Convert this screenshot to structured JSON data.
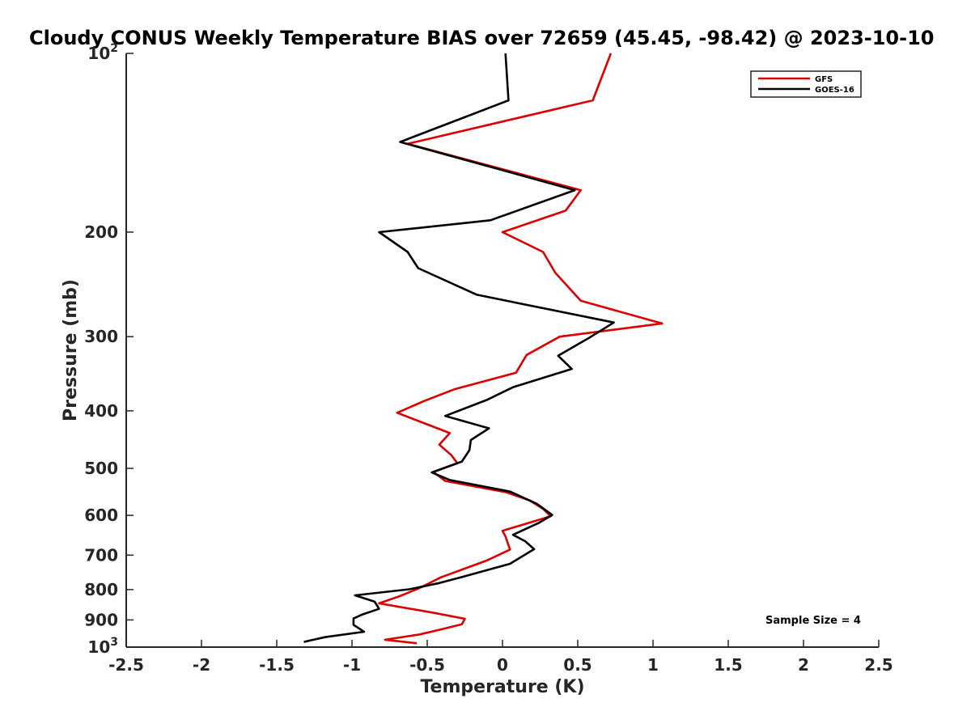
{
  "chart_data": {
    "type": "line",
    "title": "Cloudy CONUS Weekly Temperature BIAS over 72659 (45.45, -98.42) @ 2023-10-10",
    "xlabel": "Temperature (K)",
    "ylabel": "Pressure (mb)",
    "xlim": [
      -2.5,
      2.5
    ],
    "ylim": [
      100,
      1000
    ],
    "y_scale": "log",
    "y_reversed": true,
    "grid": false,
    "legend_position": "top-right",
    "x_ticks": [
      "-2.5",
      "-2",
      "-1.5",
      "-1",
      "-0.5",
      "0",
      "0.5",
      "1",
      "1.5",
      "2",
      "2.5"
    ],
    "y_ticks": [
      {
        "value": 100,
        "label": "10",
        "sup": "2"
      },
      {
        "value": 200,
        "label": "200",
        "sup": ""
      },
      {
        "value": 300,
        "label": "300",
        "sup": ""
      },
      {
        "value": 400,
        "label": "400",
        "sup": ""
      },
      {
        "value": 500,
        "label": "500",
        "sup": ""
      },
      {
        "value": 600,
        "label": "600",
        "sup": ""
      },
      {
        "value": 700,
        "label": "700",
        "sup": ""
      },
      {
        "value": 800,
        "label": "800",
        "sup": ""
      },
      {
        "value": 900,
        "label": "900",
        "sup": ""
      },
      {
        "value": 1000,
        "label": "10",
        "sup": "3"
      }
    ],
    "annotation": "Sample Size = 4",
    "series": [
      {
        "name": "GFS",
        "color": "#dd0000",
        "points": [
          [
            0.72,
            100
          ],
          [
            0.6,
            120
          ],
          [
            -0.63,
            142
          ],
          [
            0.52,
            170
          ],
          [
            0.42,
            184
          ],
          [
            0.0,
            200
          ],
          [
            0.27,
            216
          ],
          [
            0.35,
            234
          ],
          [
            0.52,
            261
          ],
          [
            1.06,
            285
          ],
          [
            0.38,
            300
          ],
          [
            0.16,
            322
          ],
          [
            0.09,
            345
          ],
          [
            -0.32,
            368
          ],
          [
            -0.52,
            385
          ],
          [
            -0.7,
            403
          ],
          [
            -0.35,
            436
          ],
          [
            -0.42,
            456
          ],
          [
            -0.34,
            475
          ],
          [
            -0.3,
            490
          ],
          [
            -0.46,
            507
          ],
          [
            -0.38,
            525
          ],
          [
            0.02,
            548
          ],
          [
            0.18,
            566
          ],
          [
            0.27,
            585
          ],
          [
            0.32,
            602
          ],
          [
            0.0,
            637
          ],
          [
            0.02,
            651
          ],
          [
            0.05,
            685
          ],
          [
            -0.1,
            714
          ],
          [
            -0.41,
            763
          ],
          [
            -0.55,
            795
          ],
          [
            -0.69,
            822
          ],
          [
            -0.82,
            844
          ],
          [
            -0.45,
            876
          ],
          [
            -0.25,
            896
          ],
          [
            -0.27,
            915
          ],
          [
            -0.42,
            935
          ],
          [
            -0.55,
            952
          ],
          [
            -0.78,
            972
          ],
          [
            -0.57,
            985
          ]
        ]
      },
      {
        "name": "GOES-16",
        "color": "#000000",
        "points": [
          [
            0.02,
            100
          ],
          [
            0.04,
            120
          ],
          [
            -0.68,
            141
          ],
          [
            0.48,
            170
          ],
          [
            -0.08,
            191
          ],
          [
            -0.82,
            200
          ],
          [
            -0.63,
            216
          ],
          [
            -0.56,
            230
          ],
          [
            -0.17,
            255
          ],
          [
            0.74,
            284
          ],
          [
            0.57,
            302
          ],
          [
            0.37,
            323
          ],
          [
            0.46,
            340
          ],
          [
            0.07,
            365
          ],
          [
            -0.1,
            383
          ],
          [
            -0.38,
            408
          ],
          [
            -0.09,
            428
          ],
          [
            -0.21,
            448
          ],
          [
            -0.22,
            466
          ],
          [
            -0.27,
            487
          ],
          [
            -0.47,
            508
          ],
          [
            -0.35,
            523
          ],
          [
            0.05,
            547
          ],
          [
            0.23,
            574
          ],
          [
            0.33,
            599
          ],
          [
            0.24,
            618
          ],
          [
            0.07,
            647
          ],
          [
            0.15,
            663
          ],
          [
            0.21,
            684
          ],
          [
            0.05,
            724
          ],
          [
            -0.27,
            762
          ],
          [
            -0.42,
            780
          ],
          [
            -0.62,
            799
          ],
          [
            -0.98,
            818
          ],
          [
            -0.85,
            838
          ],
          [
            -0.82,
            862
          ],
          [
            -0.93,
            881
          ],
          [
            -0.99,
            895
          ],
          [
            -0.99,
            917
          ],
          [
            -0.92,
            942
          ],
          [
            -1.18,
            962
          ],
          [
            -1.32,
            980
          ]
        ]
      }
    ]
  }
}
